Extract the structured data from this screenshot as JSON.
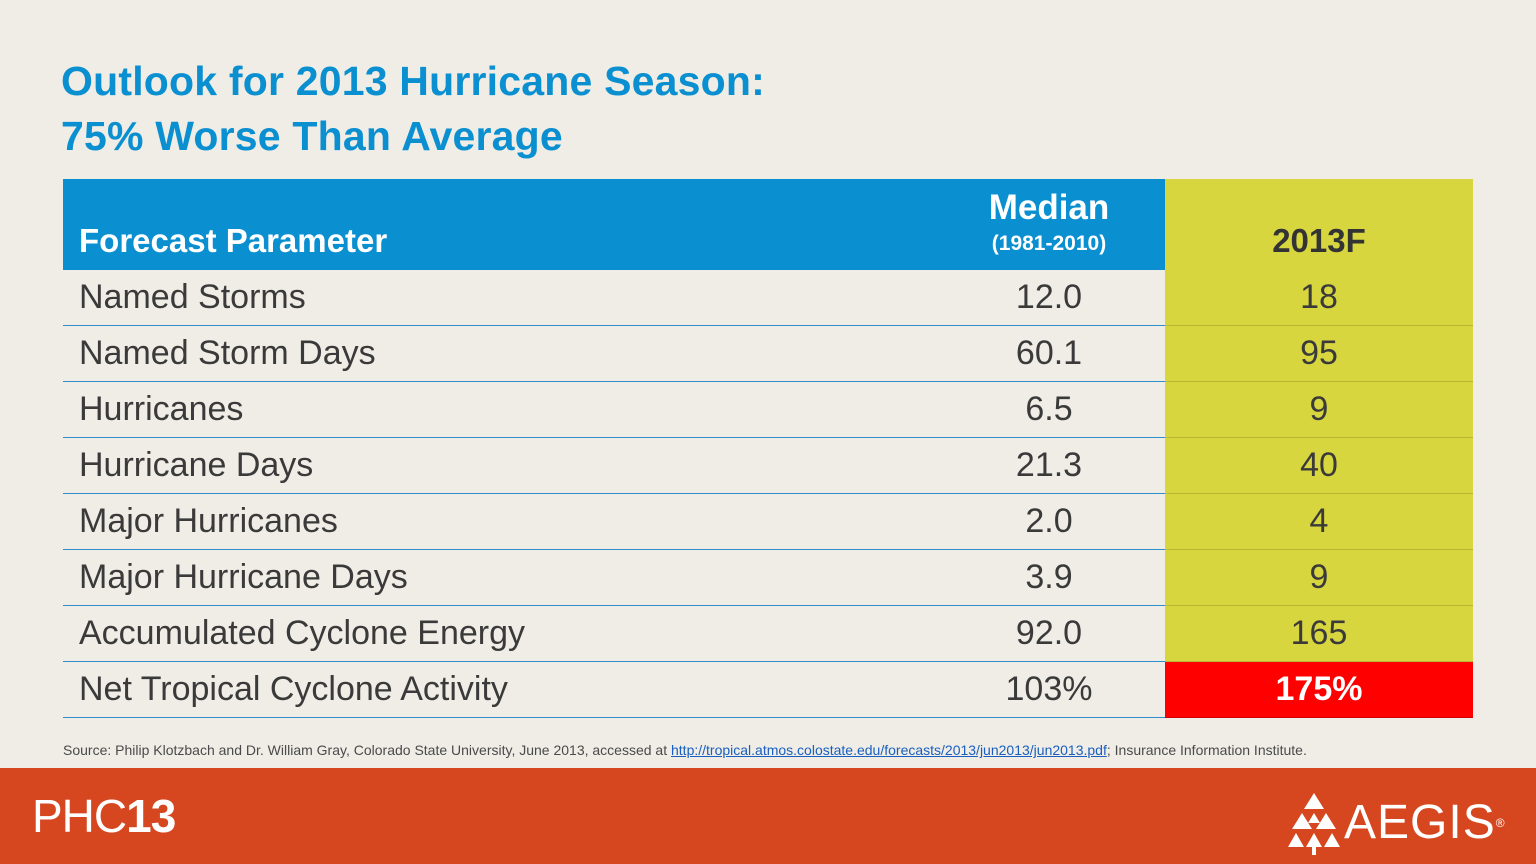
{
  "title": {
    "line1": "Outlook for 2013 Hurricane Season:",
    "line2": "75% Worse Than Average"
  },
  "table": {
    "header": {
      "param": "Forecast Parameter",
      "median": "Median",
      "median_range": "(1981-2010)",
      "forecast": "2013F"
    },
    "rows": [
      {
        "param": "Named Storms",
        "median": "12.0",
        "forecast": "18"
      },
      {
        "param": "Named Storm Days",
        "median": "60.1",
        "forecast": "95"
      },
      {
        "param": "Hurricanes",
        "median": "6.5",
        "forecast": "9"
      },
      {
        "param": "Hurricane Days",
        "median": "21.3",
        "forecast": "40"
      },
      {
        "param": "Major Hurricanes",
        "median": "2.0",
        "forecast": "4"
      },
      {
        "param": "Major Hurricane Days",
        "median": "3.9",
        "forecast": "9"
      },
      {
        "param": "Accumulated Cyclone Energy",
        "median": "92.0",
        "forecast": "165"
      },
      {
        "param": "Net Tropical Cyclone Activity",
        "median": "103%",
        "forecast": "175%"
      }
    ]
  },
  "source": {
    "prefix": "Source: Philip Klotzbach and Dr. William Gray, Colorado State University, June 2013, accessed at ",
    "link": "http://tropical.atmos.colostate.edu/forecasts/2013/jun2013/jun2013.pdf",
    "suffix": "; Insurance Information Institute."
  },
  "footer": {
    "phc_thin": "PHC",
    "phc_bold": "13",
    "aegis": "AEGIS",
    "aegis_reg": "®"
  },
  "colors": {
    "title": "#0a8fd0",
    "header_blue": "#0a8fd0",
    "forecast_column": "#d8d63e",
    "highlight": "#ff0000",
    "footer": "#d64720",
    "background": "#efede6"
  },
  "icons": [
    "aegis-logo-icon"
  ]
}
